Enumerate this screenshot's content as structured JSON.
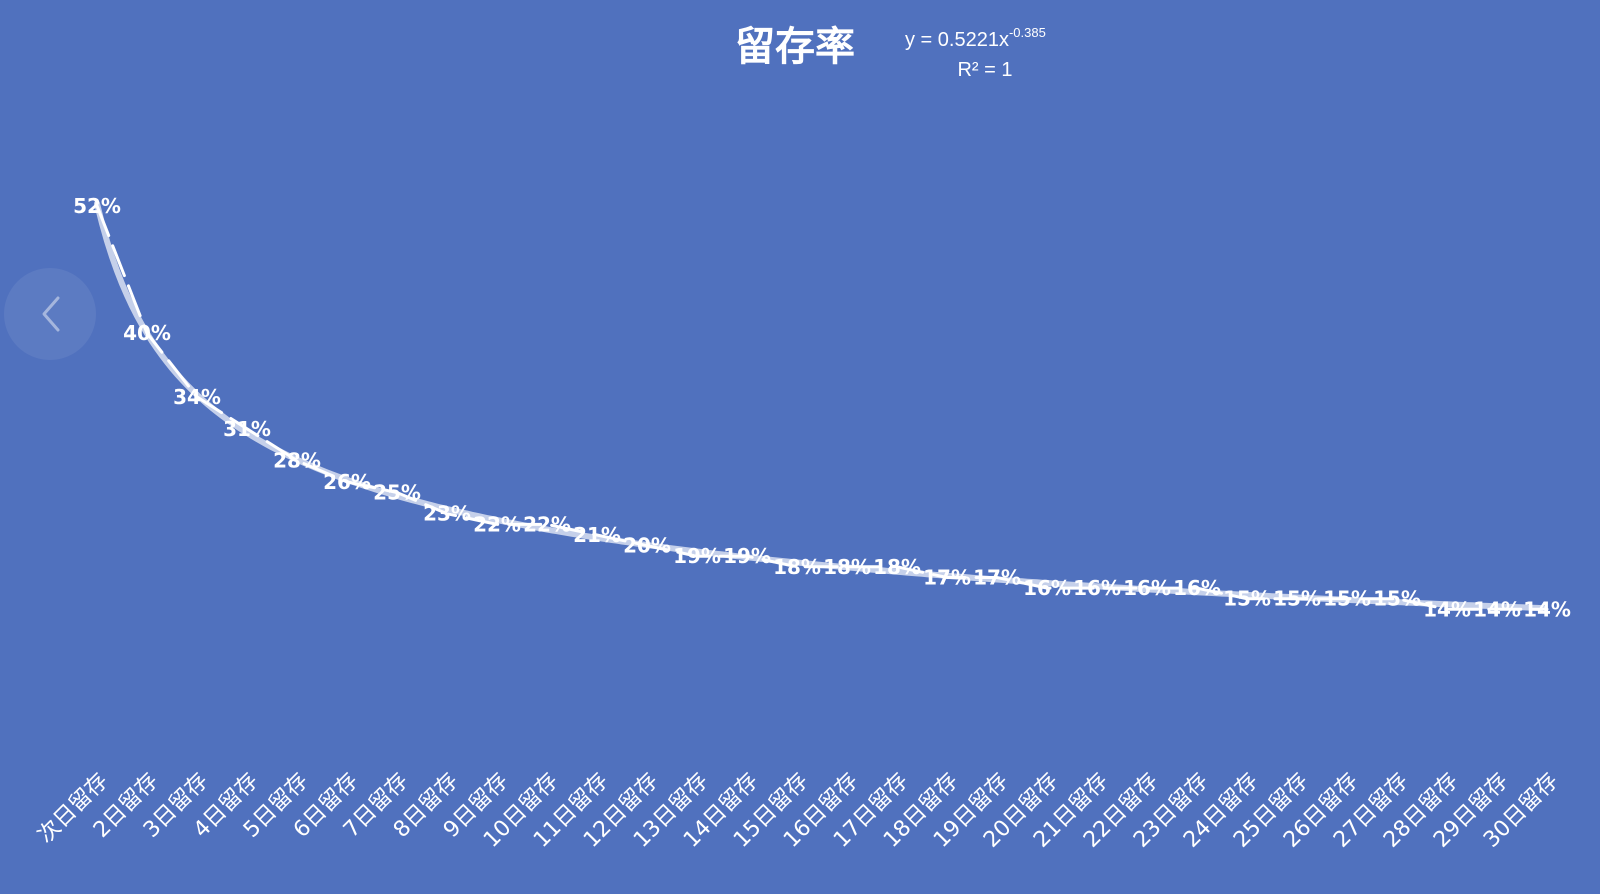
{
  "colors": {
    "background": "#5071BE",
    "text": "#FFFFFF",
    "trendline": "#D9E1F2",
    "drop_line": "#FFFFFF"
  },
  "navigation": {
    "prev_icon": "chevron-left-icon"
  },
  "chart_data": {
    "type": "line",
    "title": "留存率",
    "trendline": {
      "type": "power",
      "equation_prefix": "y = 0.5221x",
      "equation_exponent": "-0.385",
      "r2_label": "R² = 1",
      "a": 0.5221,
      "b": -0.385
    },
    "categories": [
      "次日留存",
      "2日留存",
      "3日留存",
      "4日留存",
      "5日留存",
      "6日留存",
      "7日留存",
      "8日留存",
      "9日留存",
      "10日留存",
      "11日留存",
      "12日留存",
      "13日留存",
      "14日留存",
      "15日留存",
      "16日留存",
      "17日留存",
      "18日留存",
      "19日留存",
      "20日留存",
      "21日留存",
      "22日留存",
      "23日留存",
      "24日留存",
      "25日留存",
      "26日留存",
      "27日留存",
      "28日留存",
      "29日留存",
      "30日留存"
    ],
    "series": [
      {
        "values": [
          0.52,
          0.4,
          0.34,
          0.31,
          0.28,
          0.26,
          0.25,
          0.23,
          0.22,
          0.22,
          0.21,
          0.2,
          0.19,
          0.19,
          0.18,
          0.18,
          0.18,
          0.17,
          0.17,
          0.16,
          0.16,
          0.16,
          0.16,
          0.15,
          0.15,
          0.15,
          0.15,
          0.14,
          0.14,
          0.14
        ],
        "labels": [
          "52%",
          "40%",
          "34%",
          "31%",
          "28%",
          "26%",
          "25%",
          "23%",
          "22%",
          "22%",
          "21%",
          "20%",
          "19%",
          "19%",
          "18%",
          "18%",
          "18%",
          "17%",
          "17%",
          "16%",
          "16%",
          "16%",
          "16%",
          "15%",
          "15%",
          "15%",
          "15%",
          "14%",
          "14%",
          "14%"
        ]
      }
    ],
    "ylim": [
      0,
      0.6
    ],
    "grid": false,
    "legend": "none",
    "drop_lines": true
  }
}
